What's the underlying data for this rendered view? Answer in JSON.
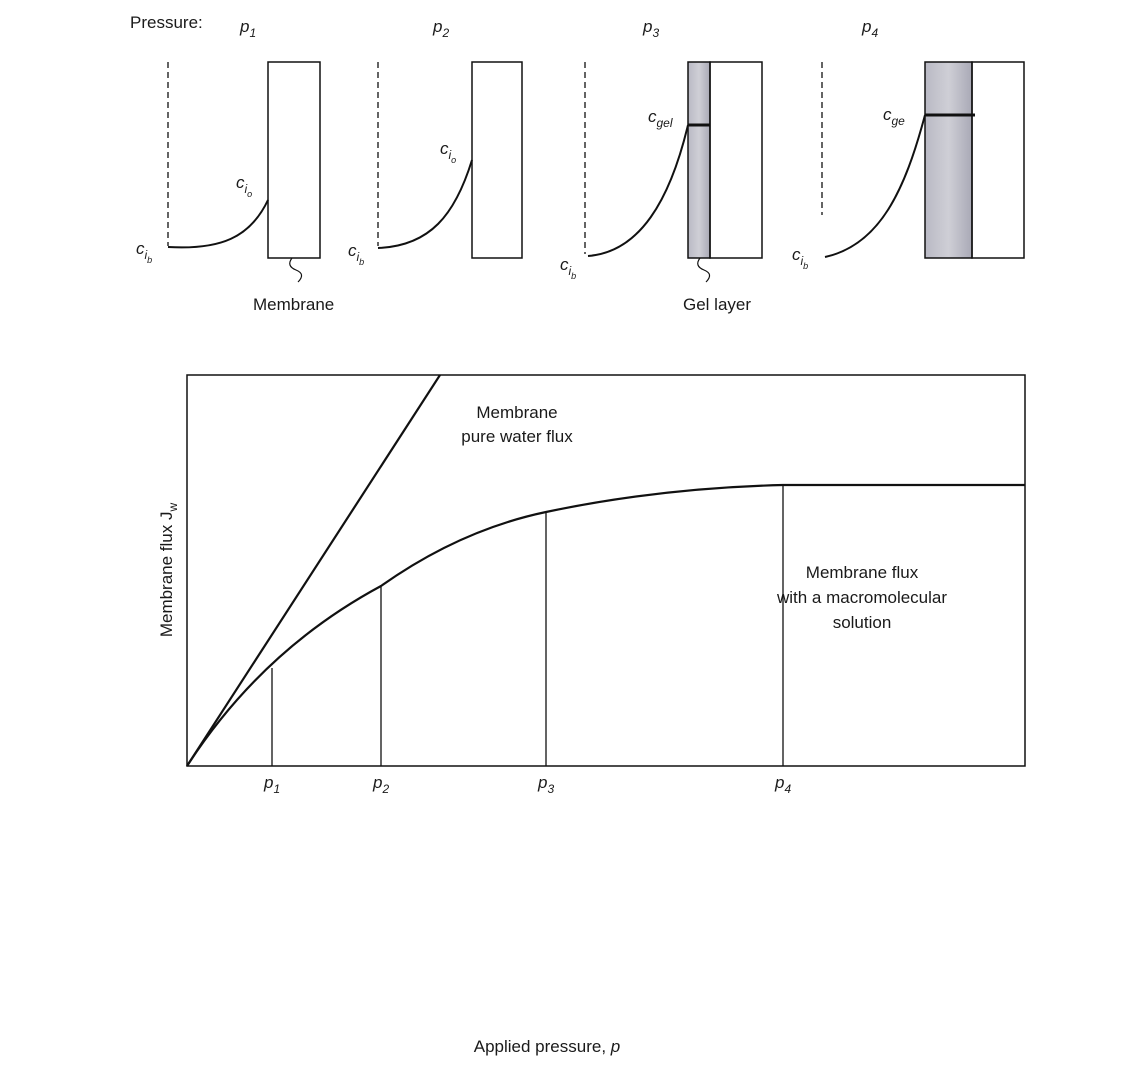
{
  "top": {
    "pressure_label": "Pressure:",
    "panels": [
      {
        "p": "p",
        "p_sub": "1",
        "c_bulk": "c",
        "c_bulk_sub": "i",
        "c_bulk_subsub": "b",
        "c_wall": "c",
        "c_wall_sub": "i",
        "c_wall_subsub": "o",
        "caption": "Membrane"
      },
      {
        "p": "p",
        "p_sub": "2",
        "c_bulk": "c",
        "c_bulk_sub": "i",
        "c_bulk_subsub": "b",
        "c_wall": "c",
        "c_wall_sub": "i",
        "c_wall_subsub": "o"
      },
      {
        "p": "p",
        "p_sub": "3",
        "c_bulk": "c",
        "c_bulk_sub": "i",
        "c_bulk_subsub": "b",
        "c_wall": "c",
        "c_wall_sub": "gel",
        "caption": "Gel layer"
      },
      {
        "p": "p",
        "p_sub": "4",
        "c_bulk": "c",
        "c_bulk_sub": "i",
        "c_bulk_subsub": "b",
        "c_wall": "c",
        "c_wall_sub": "ge"
      }
    ]
  },
  "plot": {
    "y_label": "Membrane flux J",
    "y_label_sub": "w",
    "x_label": "Applied pressure, ",
    "x_label_symbol": "p",
    "pure_water_label": [
      "Membrane",
      "pure water flux"
    ],
    "solution_label": [
      "Membrane flux",
      "with a macromolecular",
      "solution"
    ],
    "x_ticks": [
      {
        "p": "p",
        "sub": "1"
      },
      {
        "p": "p",
        "sub": "2"
      },
      {
        "p": "p",
        "sub": "3"
      },
      {
        "p": "p",
        "sub": "4"
      }
    ]
  }
}
